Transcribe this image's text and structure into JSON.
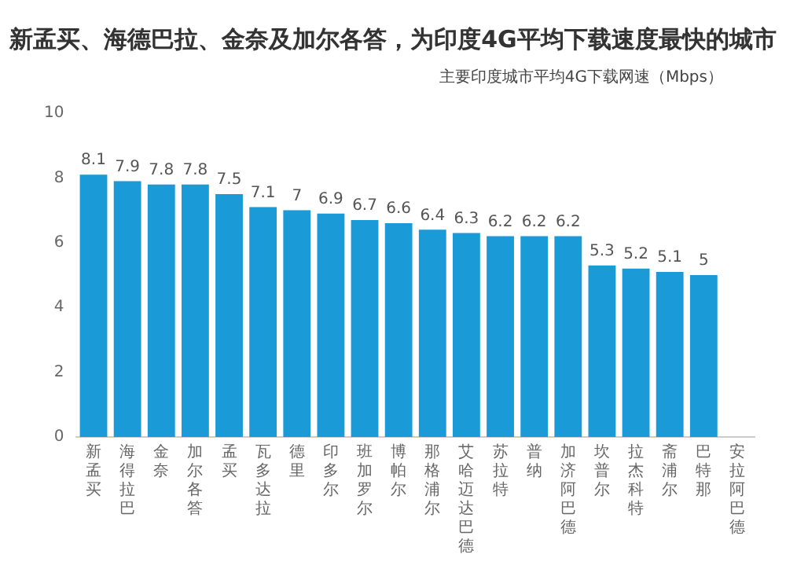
{
  "chart_data": {
    "type": "bar",
    "title": "新孟买、海德巴拉、金奈及加尔各答，为印度4G平均下载速度最快的城市",
    "subtitle": "主要印度城市平均4G下载网速（Mbps）",
    "categories": [
      "新孟买",
      "海得拉巴",
      "金奈",
      "加尔各答",
      "孟买",
      "瓦多达拉",
      "德里",
      "印多尔",
      "班加罗尔",
      "博帕尔",
      "那格浦尔",
      "艾哈迈达巴德",
      "苏拉特",
      "普纳",
      "加济阿巴德",
      "坎普尔",
      "拉杰科特",
      "斋浦尔",
      "巴特那",
      "安拉阿巴德"
    ],
    "values": [
      8.1,
      7.9,
      7.8,
      7.8,
      7.5,
      7.1,
      7,
      6.9,
      6.7,
      6.6,
      6.4,
      6.3,
      6.2,
      6.2,
      6.2,
      5.3,
      5.2,
      5.1,
      5,
      null
    ],
    "color": "#1a9ad6",
    "ylim": [
      0,
      10
    ],
    "yticks": [
      0,
      2,
      4,
      6,
      8,
      10
    ],
    "grid": false,
    "data_labels": true
  }
}
